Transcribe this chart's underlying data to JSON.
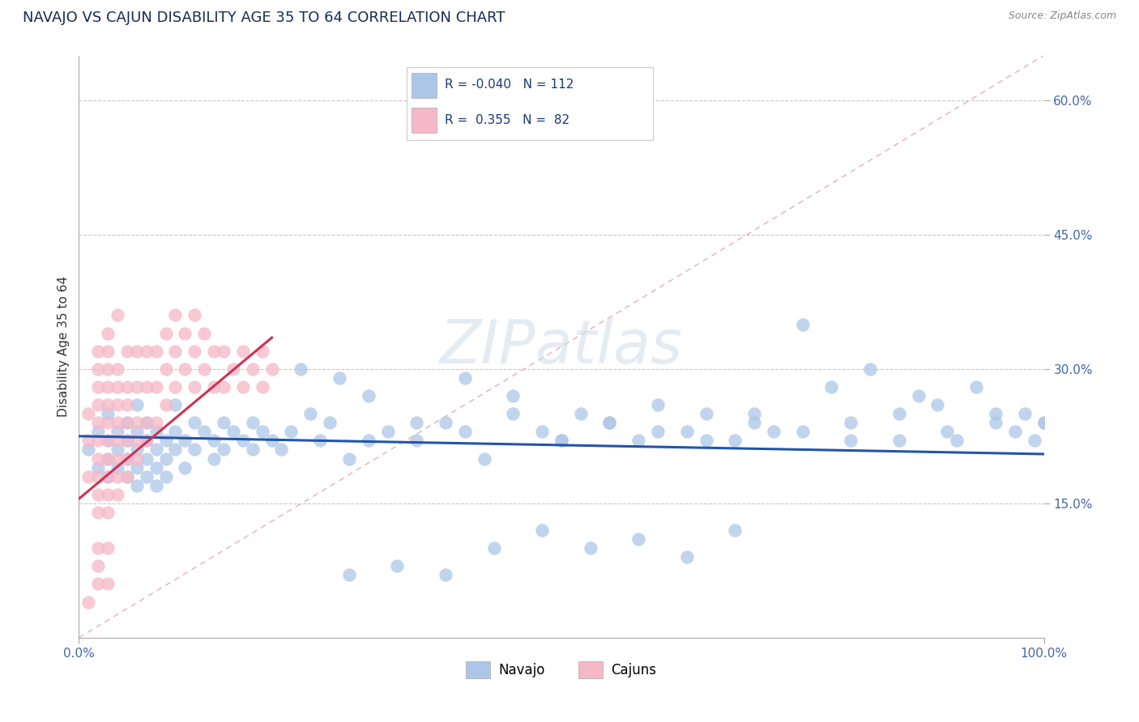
{
  "title": "NAVAJO VS CAJUN DISABILITY AGE 35 TO 64 CORRELATION CHART",
  "source_text": "Source: ZipAtlas.com",
  "ylabel": "Disability Age 35 to 64",
  "xlim": [
    0.0,
    1.0
  ],
  "ylim": [
    0.0,
    0.65
  ],
  "ytick_positions": [
    0.15,
    0.3,
    0.45,
    0.6
  ],
  "grid_color": "#c8c8c8",
  "navajo_color": "#adc6e8",
  "cajun_color": "#f5b8c8",
  "navajo_line_color": "#2255aa",
  "cajun_line_color": "#cc3355",
  "diagonal_color": "#e0a0b0",
  "legend_navajo_R": "-0.040",
  "legend_navajo_N": "112",
  "legend_cajun_R": "0.355",
  "legend_cajun_N": "82",
  "navajo_x": [
    0.01,
    0.02,
    0.02,
    0.03,
    0.03,
    0.03,
    0.03,
    0.04,
    0.04,
    0.04,
    0.05,
    0.05,
    0.05,
    0.05,
    0.06,
    0.06,
    0.06,
    0.06,
    0.06,
    0.07,
    0.07,
    0.07,
    0.07,
    0.08,
    0.08,
    0.08,
    0.08,
    0.09,
    0.09,
    0.09,
    0.1,
    0.1,
    0.1,
    0.11,
    0.11,
    0.12,
    0.12,
    0.13,
    0.14,
    0.14,
    0.15,
    0.15,
    0.16,
    0.17,
    0.18,
    0.18,
    0.19,
    0.2,
    0.21,
    0.22,
    0.23,
    0.24,
    0.25,
    0.26,
    0.27,
    0.28,
    0.3,
    0.32,
    0.35,
    0.38,
    0.4,
    0.42,
    0.45,
    0.48,
    0.5,
    0.52,
    0.55,
    0.58,
    0.6,
    0.63,
    0.65,
    0.68,
    0.7,
    0.72,
    0.75,
    0.78,
    0.8,
    0.82,
    0.85,
    0.87,
    0.89,
    0.91,
    0.93,
    0.95,
    0.97,
    0.98,
    0.99,
    1.0,
    0.5,
    0.55,
    0.6,
    0.65,
    0.7,
    0.75,
    0.8,
    0.85,
    0.9,
    0.95,
    1.0,
    0.3,
    0.35,
    0.4,
    0.45,
    0.28,
    0.33,
    0.38,
    0.43,
    0.48,
    0.53,
    0.58,
    0.63,
    0.68
  ],
  "navajo_y": [
    0.21,
    0.19,
    0.23,
    0.2,
    0.22,
    0.18,
    0.25,
    0.19,
    0.21,
    0.23,
    0.2,
    0.22,
    0.18,
    0.24,
    0.19,
    0.21,
    0.23,
    0.17,
    0.26,
    0.2,
    0.22,
    0.18,
    0.24,
    0.19,
    0.21,
    0.23,
    0.17,
    0.2,
    0.22,
    0.18,
    0.21,
    0.23,
    0.26,
    0.22,
    0.19,
    0.21,
    0.24,
    0.23,
    0.22,
    0.2,
    0.24,
    0.21,
    0.23,
    0.22,
    0.24,
    0.21,
    0.23,
    0.22,
    0.21,
    0.23,
    0.3,
    0.25,
    0.22,
    0.24,
    0.29,
    0.2,
    0.27,
    0.23,
    0.22,
    0.24,
    0.29,
    0.2,
    0.27,
    0.23,
    0.22,
    0.25,
    0.24,
    0.22,
    0.26,
    0.23,
    0.25,
    0.22,
    0.24,
    0.23,
    0.35,
    0.28,
    0.22,
    0.3,
    0.25,
    0.27,
    0.26,
    0.22,
    0.28,
    0.24,
    0.23,
    0.25,
    0.22,
    0.24,
    0.22,
    0.24,
    0.23,
    0.22,
    0.25,
    0.23,
    0.24,
    0.22,
    0.23,
    0.25,
    0.24,
    0.22,
    0.24,
    0.23,
    0.25,
    0.07,
    0.08,
    0.07,
    0.1,
    0.12,
    0.1,
    0.11,
    0.09,
    0.12
  ],
  "cajun_x": [
    0.01,
    0.01,
    0.01,
    0.02,
    0.02,
    0.02,
    0.02,
    0.02,
    0.02,
    0.02,
    0.02,
    0.02,
    0.02,
    0.03,
    0.03,
    0.03,
    0.03,
    0.03,
    0.03,
    0.03,
    0.03,
    0.03,
    0.03,
    0.03,
    0.04,
    0.04,
    0.04,
    0.04,
    0.04,
    0.04,
    0.04,
    0.04,
    0.04,
    0.05,
    0.05,
    0.05,
    0.05,
    0.05,
    0.05,
    0.05,
    0.06,
    0.06,
    0.06,
    0.06,
    0.06,
    0.07,
    0.07,
    0.07,
    0.07,
    0.08,
    0.08,
    0.08,
    0.09,
    0.09,
    0.09,
    0.1,
    0.1,
    0.1,
    0.11,
    0.11,
    0.12,
    0.12,
    0.12,
    0.13,
    0.13,
    0.14,
    0.14,
    0.15,
    0.15,
    0.16,
    0.17,
    0.17,
    0.18,
    0.19,
    0.19,
    0.2,
    0.01,
    0.02,
    0.03,
    0.02,
    0.02,
    0.03
  ],
  "cajun_y": [
    0.18,
    0.22,
    0.25,
    0.14,
    0.16,
    0.18,
    0.2,
    0.22,
    0.24,
    0.26,
    0.28,
    0.3,
    0.32,
    0.14,
    0.16,
    0.18,
    0.2,
    0.22,
    0.24,
    0.26,
    0.28,
    0.3,
    0.32,
    0.34,
    0.16,
    0.18,
    0.2,
    0.22,
    0.24,
    0.26,
    0.28,
    0.3,
    0.36,
    0.18,
    0.2,
    0.22,
    0.24,
    0.26,
    0.28,
    0.32,
    0.2,
    0.22,
    0.24,
    0.28,
    0.32,
    0.22,
    0.24,
    0.28,
    0.32,
    0.24,
    0.28,
    0.32,
    0.26,
    0.3,
    0.34,
    0.28,
    0.32,
    0.36,
    0.3,
    0.34,
    0.28,
    0.32,
    0.36,
    0.3,
    0.34,
    0.28,
    0.32,
    0.28,
    0.32,
    0.3,
    0.28,
    0.32,
    0.3,
    0.28,
    0.32,
    0.3,
    0.04,
    0.06,
    0.06,
    0.08,
    0.1,
    0.1
  ]
}
